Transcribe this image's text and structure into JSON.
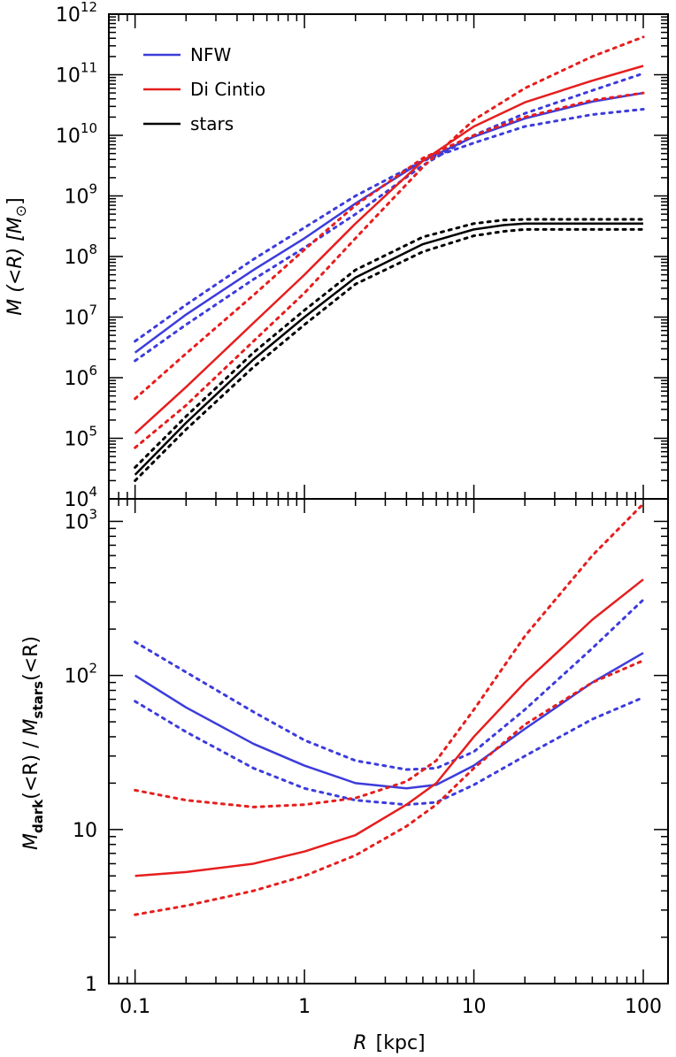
{
  "chart_data": [
    {
      "panel": "top",
      "type": "line",
      "xscale": "log",
      "yscale": "log",
      "xlim": [
        0.07,
        140
      ],
      "ylim": [
        10000,
        1000000000000
      ],
      "ylabel": "M (<R) [M⊙]",
      "ylabel_parts": {
        "main": "M (<R) [M",
        "sub": "⊙",
        "end": "]"
      },
      "yticks": [
        {
          "v": 10000,
          "base": "10",
          "exp": "4"
        },
        {
          "v": 100000,
          "base": "10",
          "exp": "5"
        },
        {
          "v": 1000000,
          "base": "10",
          "exp": "6"
        },
        {
          "v": 10000000,
          "base": "10",
          "exp": "7"
        },
        {
          "v": 100000000,
          "base": "10",
          "exp": "8"
        },
        {
          "v": 1000000000,
          "base": "10",
          "exp": "9"
        },
        {
          "v": 10000000000,
          "base": "10",
          "exp": "10"
        },
        {
          "v": 100000000000,
          "base": "10",
          "exp": "11"
        },
        {
          "v": 1000000000000,
          "base": "10",
          "exp": "12"
        }
      ],
      "legend": {
        "position": "top-left",
        "entries": [
          "NFW",
          "Di Cintio",
          "stars"
        ]
      },
      "series": [
        {
          "name": "NFW",
          "color": "#3c3cdc",
          "style": "solid",
          "points": [
            [
              0.1,
              2600000.0
            ],
            [
              0.2,
              11000000.0
            ],
            [
              0.5,
              60000000.0
            ],
            [
              1,
              200000000.0
            ],
            [
              2,
              750000000.0
            ],
            [
              5,
              3800000000.0
            ],
            [
              10,
              9500000000.0
            ],
            [
              20,
              19000000000.0
            ],
            [
              50,
              36000000000.0
            ],
            [
              100,
              50000000000.0
            ]
          ]
        },
        {
          "color": "#3c3cdc",
          "style": "dotted",
          "points": [
            [
              0.1,
              4000000.0
            ],
            [
              0.2,
              16000000.0
            ],
            [
              0.5,
              90000000.0
            ],
            [
              1,
              300000000.0
            ],
            [
              2,
              1000000000.0
            ],
            [
              5,
              3800000000.0
            ],
            [
              10,
              7500000000.0
            ],
            [
              20,
              14000000000.0
            ],
            [
              50,
              22000000000.0
            ],
            [
              100,
              27000000000.0
            ]
          ]
        },
        {
          "color": "#3c3cdc",
          "style": "dotted",
          "points": [
            [
              0.1,
              1900000.0
            ],
            [
              0.2,
              7500000.0
            ],
            [
              0.5,
              42000000.0
            ],
            [
              1,
              140000000.0
            ],
            [
              2,
              500000000.0
            ],
            [
              5,
              3200000000.0
            ],
            [
              10,
              10000000000.0
            ],
            [
              20,
              23000000000.0
            ],
            [
              50,
              55000000000.0
            ],
            [
              100,
              105000000000.0
            ]
          ]
        },
        {
          "name": "Di Cintio",
          "color": "#e61e1e",
          "style": "solid",
          "points": [
            [
              0.1,
              120000.0
            ],
            [
              0.2,
              700000.0
            ],
            [
              0.5,
              8000000.0
            ],
            [
              1,
              50000000.0
            ],
            [
              2,
              350000000.0
            ],
            [
              5,
              3800000000.0
            ],
            [
              10,
              14000000000.0
            ],
            [
              20,
              35000000000.0
            ],
            [
              50,
              80000000000.0
            ],
            [
              100,
              140000000000.0
            ]
          ]
        },
        {
          "color": "#e61e1e",
          "style": "dotted",
          "points": [
            [
              0.1,
              450000.0
            ],
            [
              0.2,
              2500000.0
            ],
            [
              0.5,
              23000000.0
            ],
            [
              1,
              130000000.0
            ],
            [
              2,
              700000000.0
            ],
            [
              5,
              4200000000.0
            ],
            [
              10,
              10000000000.0
            ],
            [
              20,
              20000000000.0
            ],
            [
              50,
              38000000000.0
            ],
            [
              100,
              50000000000.0
            ]
          ]
        },
        {
          "color": "#e61e1e",
          "style": "dotted",
          "points": [
            [
              0.1,
              70000.0
            ],
            [
              0.2,
              350000.0
            ],
            [
              0.5,
              4000000.0
            ],
            [
              1,
              25000000.0
            ],
            [
              2,
              200000000.0
            ],
            [
              5,
              3000000000.0
            ],
            [
              10,
              18000000000.0
            ],
            [
              20,
              60000000000.0
            ],
            [
              50,
              200000000000.0
            ],
            [
              100,
              420000000000.0
            ]
          ]
        },
        {
          "name": "stars",
          "color": "#000000",
          "style": "solid",
          "points": [
            [
              0.1,
              25000.0
            ],
            [
              0.2,
              180000.0
            ],
            [
              0.5,
              2000000.0
            ],
            [
              1,
              10000000.0
            ],
            [
              2,
              45000000.0
            ],
            [
              5,
              160000000.0
            ],
            [
              10,
              280000000.0
            ],
            [
              15,
              330000000.0
            ],
            [
              20,
              350000000.0
            ],
            [
              50,
              350000000.0
            ],
            [
              100,
              350000000.0
            ]
          ]
        },
        {
          "color": "#000000",
          "style": "dotted",
          "points": [
            [
              0.1,
              33000.0
            ],
            [
              0.2,
              230000.0
            ],
            [
              0.5,
              2600000.0
            ],
            [
              1,
              13000000.0
            ],
            [
              2,
              60000000.0
            ],
            [
              5,
              210000000.0
            ],
            [
              10,
              350000000.0
            ],
            [
              15,
              400000000.0
            ],
            [
              20,
              410000000.0
            ],
            [
              50,
              410000000.0
            ],
            [
              100,
              410000000.0
            ]
          ]
        },
        {
          "color": "#000000",
          "style": "dotted",
          "points": [
            [
              0.1,
              20000.0
            ],
            [
              0.2,
              140000.0
            ],
            [
              0.5,
              1500000.0
            ],
            [
              1,
              7500000.0
            ],
            [
              2,
              35000000.0
            ],
            [
              5,
              120000000.0
            ],
            [
              10,
              220000000.0
            ],
            [
              15,
              260000000.0
            ],
            [
              20,
              280000000.0
            ],
            [
              50,
              280000000.0
            ],
            [
              100,
              280000000.0
            ]
          ]
        }
      ]
    },
    {
      "panel": "bottom",
      "type": "line",
      "xscale": "log",
      "yscale": "log",
      "xlim": [
        0.07,
        140
      ],
      "ylim": [
        1,
        1400
      ],
      "xlabel": "R [kpc]",
      "xlabel_parts": {
        "var": "R",
        "unit": "[kpc]"
      },
      "ylabel": "Mdark(<R) / Mstars(<R)",
      "ylabel_parts": {
        "m1": "M",
        "sub1": "dark",
        "mid": "(<R) / ",
        "m2": "M",
        "sub2": "stars",
        "end": "(<R)"
      },
      "xticks": [
        {
          "v": 0.1,
          "label": "0.1"
        },
        {
          "v": 1,
          "label": "1"
        },
        {
          "v": 10,
          "label": "10"
        },
        {
          "v": 100,
          "label": "100"
        }
      ],
      "yticks": [
        {
          "v": 1,
          "label": "1"
        },
        {
          "v": 10,
          "label": "10"
        },
        {
          "v": 100,
          "base": "10",
          "exp": "2"
        },
        {
          "v": 1000,
          "base": "10",
          "exp": "3"
        }
      ],
      "series": [
        {
          "name": "NFW",
          "color": "#3c3cdc",
          "style": "solid",
          "points": [
            [
              0.1,
              100
            ],
            [
              0.2,
              62
            ],
            [
              0.5,
              36
            ],
            [
              1,
              26
            ],
            [
              2,
              20
            ],
            [
              4,
              18.5
            ],
            [
              6,
              19.5
            ],
            [
              10,
              26
            ],
            [
              20,
              45
            ],
            [
              50,
              90
            ],
            [
              100,
              140
            ]
          ]
        },
        {
          "color": "#3c3cdc",
          "style": "dotted",
          "points": [
            [
              0.1,
              165
            ],
            [
              0.2,
              105
            ],
            [
              0.5,
              58
            ],
            [
              1,
              38
            ],
            [
              2,
              28
            ],
            [
              4,
              24.5
            ],
            [
              6,
              25
            ],
            [
              10,
              32
            ],
            [
              20,
              60
            ],
            [
              50,
              150
            ],
            [
              100,
              310
            ]
          ]
        },
        {
          "color": "#3c3cdc",
          "style": "dotted",
          "points": [
            [
              0.1,
              68
            ],
            [
              0.2,
              43
            ],
            [
              0.5,
              25
            ],
            [
              1,
              18.5
            ],
            [
              2,
              15.5
            ],
            [
              4,
              14.5
            ],
            [
              6,
              15
            ],
            [
              10,
              19.5
            ],
            [
              20,
              30
            ],
            [
              50,
              52
            ],
            [
              100,
              72
            ]
          ]
        },
        {
          "name": "Di Cintio",
          "color": "#e61e1e",
          "style": "solid",
          "points": [
            [
              0.1,
              5
            ],
            [
              0.2,
              5.3
            ],
            [
              0.5,
              6
            ],
            [
              1,
              7.2
            ],
            [
              2,
              9.2
            ],
            [
              4,
              14.5
            ],
            [
              6,
              20
            ],
            [
              10,
              40
            ],
            [
              20,
              90
            ],
            [
              50,
              230
            ],
            [
              100,
              420
            ]
          ]
        },
        {
          "color": "#e61e1e",
          "style": "dotted",
          "points": [
            [
              0.1,
              18
            ],
            [
              0.2,
              15.5
            ],
            [
              0.5,
              14
            ],
            [
              1,
              14.5
            ],
            [
              2,
              16
            ],
            [
              4,
              20.5
            ],
            [
              6,
              28
            ],
            [
              10,
              60
            ],
            [
              20,
              180
            ],
            [
              50,
              600
            ],
            [
              100,
              1300
            ]
          ]
        },
        {
          "color": "#e61e1e",
          "style": "dotted",
          "points": [
            [
              0.1,
              2.8
            ],
            [
              0.2,
              3.2
            ],
            [
              0.5,
              4
            ],
            [
              1,
              5
            ],
            [
              2,
              6.8
            ],
            [
              4,
              10.5
            ],
            [
              6,
              14.5
            ],
            [
              10,
              25
            ],
            [
              20,
              48
            ],
            [
              50,
              90
            ],
            [
              100,
              125
            ]
          ]
        }
      ]
    }
  ]
}
